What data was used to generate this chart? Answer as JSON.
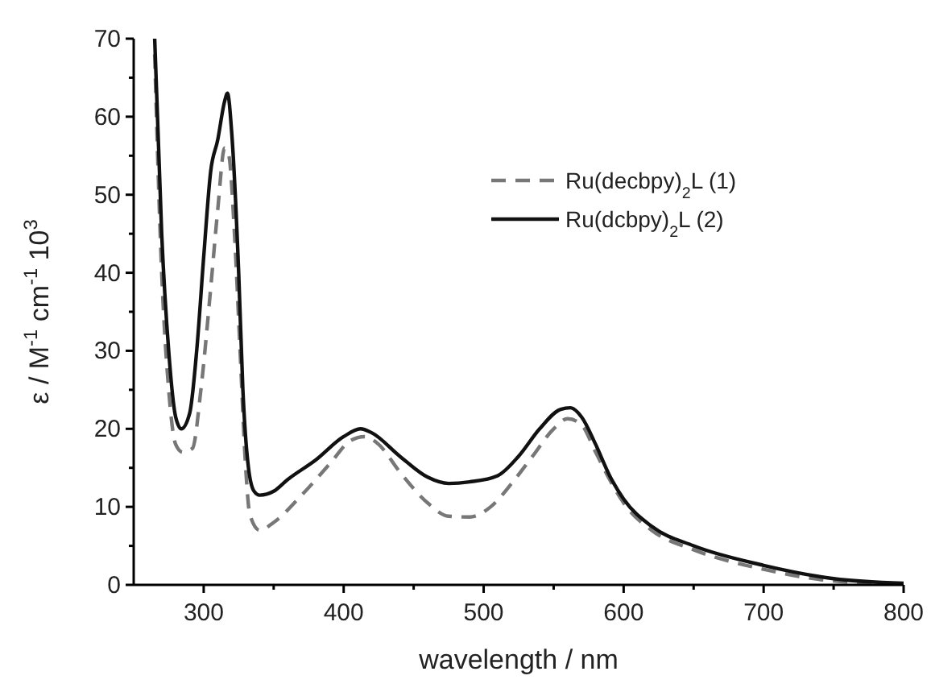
{
  "chart_data": {
    "type": "line",
    "xlabel": "wavelength / nm",
    "ylabel": "ε / M$^{-1}$ cm$^{-1}$ 10$^{3}$",
    "xlim": [
      250,
      800
    ],
    "ylim": [
      0,
      70
    ],
    "xticks": [
      300,
      {
        "value": 350,
        "label": null
      },
      400,
      {
        "value": 450,
        "label": null
      },
      500,
      {
        "value": 550,
        "label": null
      },
      600,
      {
        "value": 650,
        "label": null
      },
      700,
      {
        "value": 750,
        "label": null
      },
      800
    ],
    "yticks": [
      0,
      {
        "value": 5,
        "label": null
      },
      10,
      {
        "value": 15,
        "label": null
      },
      20,
      {
        "value": 25,
        "label": null
      },
      30,
      {
        "value": 35,
        "label": null
      },
      40,
      {
        "value": 45,
        "label": null
      },
      50,
      {
        "value": 55,
        "label": null
      },
      60,
      {
        "value": 65,
        "label": null
      },
      70
    ],
    "legend": "top right",
    "grid": false,
    "series": [
      {
        "name": "Ru(decbpy)$_{2}$L (1)",
        "color": "#777777",
        "line_style": "dashed",
        "x": [
          265,
          270,
          275,
          280,
          285,
          292,
          298,
          305,
          310,
          315,
          318,
          322,
          326,
          330,
          333,
          340,
          350,
          370,
          390,
          405,
          415,
          425,
          440,
          460,
          475,
          490,
          505,
          520,
          535,
          550,
          560,
          570,
          580,
          590,
          600,
          620,
          650,
          700,
          750,
          800
        ],
        "values": [
          68,
          40,
          25,
          18,
          17,
          17.5,
          25,
          38,
          48,
          56,
          55,
          45,
          30,
          15,
          9,
          7,
          8,
          11.5,
          15.5,
          18.5,
          19,
          18,
          14.5,
          10.5,
          8.8,
          8.7,
          10,
          13,
          16.5,
          20,
          21.3,
          20.5,
          17,
          13.5,
          10.5,
          7,
          4.5,
          2,
          0.5,
          0.1
        ]
      },
      {
        "name": "Ru(dcbpy)$_{2}$L (2)",
        "color": "#111111",
        "line_style": "solid",
        "x": [
          265,
          270,
          275,
          280,
          284,
          290,
          295,
          300,
          305,
          310,
          315,
          317,
          320,
          325,
          328,
          332,
          336,
          340,
          350,
          360,
          380,
          400,
          412,
          420,
          440,
          460,
          475,
          490,
          510,
          525,
          540,
          555,
          562,
          570,
          580,
          590,
          600,
          620,
          650,
          700,
          750,
          800
        ],
        "values": [
          70,
          45,
          30,
          21.5,
          20,
          22,
          30,
          42,
          53,
          57,
          62,
          63,
          58,
          40,
          25,
          15,
          12,
          11.5,
          12,
          13.5,
          16,
          19,
          20,
          19.5,
          16.5,
          13.8,
          13,
          13.2,
          14,
          16.5,
          20,
          22.5,
          22.7,
          21.5,
          18,
          14,
          11,
          7.5,
          5,
          2.5,
          0.8,
          0.2
        ]
      }
    ]
  }
}
